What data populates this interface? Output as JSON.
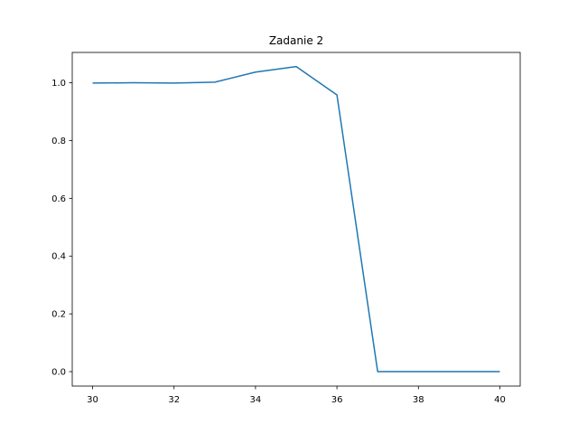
{
  "chart_data": {
    "type": "line",
    "title": "Zadanie 2",
    "xlabel": "",
    "ylabel": "",
    "x": [
      30,
      31,
      32,
      33,
      34,
      35,
      36,
      37,
      38,
      39,
      40
    ],
    "series": [
      {
        "values": [
          0.999,
          1.0,
          0.999,
          1.002,
          1.037,
          1.056,
          0.958,
          0.0,
          0.0,
          0.0,
          0.0
        ],
        "color": "#1f77b4"
      }
    ],
    "xlim": [
      29.5,
      40.5
    ],
    "ylim": [
      -0.05,
      1.105
    ],
    "xticks": [
      30,
      32,
      34,
      36,
      38,
      40
    ],
    "yticks": [
      0.0,
      0.2,
      0.4,
      0.6,
      0.8,
      1.0
    ],
    "xtick_labels": [
      "30",
      "32",
      "34",
      "36",
      "38",
      "40"
    ],
    "ytick_labels": [
      "0.0",
      "0.2",
      "0.4",
      "0.6",
      "0.8",
      "1.0"
    ],
    "grid": false,
    "legend": false
  }
}
